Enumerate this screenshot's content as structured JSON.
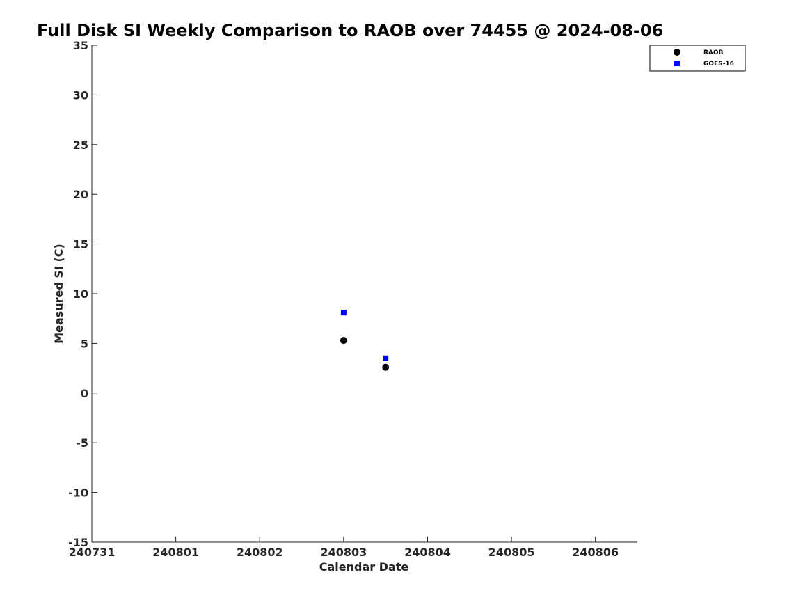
{
  "chart_data": {
    "type": "scatter",
    "title": "Full Disk SI Weekly Comparison to RAOB over 74455 @ 2024-08-06",
    "xlabel": "Calendar Date",
    "ylabel": "Measured SI (C)",
    "x_tick_labels": [
      "240731",
      "240801",
      "240802",
      "240803",
      "240804",
      "240805",
      "240806"
    ],
    "xlim": [
      "2024-07-31",
      "2024-08-06 12:00"
    ],
    "ylim": [
      -15,
      35
    ],
    "y_ticks": [
      -15,
      -10,
      -5,
      0,
      5,
      10,
      15,
      20,
      25,
      30,
      35
    ],
    "grid": false,
    "legend_position": "top-right",
    "series": [
      {
        "name": "RAOB",
        "marker": "circle",
        "color": "#000000",
        "points": [
          {
            "x": "2024-08-03 00:00",
            "y": 5.3
          },
          {
            "x": "2024-08-03 12:00",
            "y": 2.6
          }
        ]
      },
      {
        "name": "GOES-16",
        "marker": "square",
        "color": "#0000ff",
        "points": [
          {
            "x": "2024-08-03 00:00",
            "y": 8.1
          },
          {
            "x": "2024-08-03 12:00",
            "y": 3.5
          }
        ]
      }
    ]
  }
}
